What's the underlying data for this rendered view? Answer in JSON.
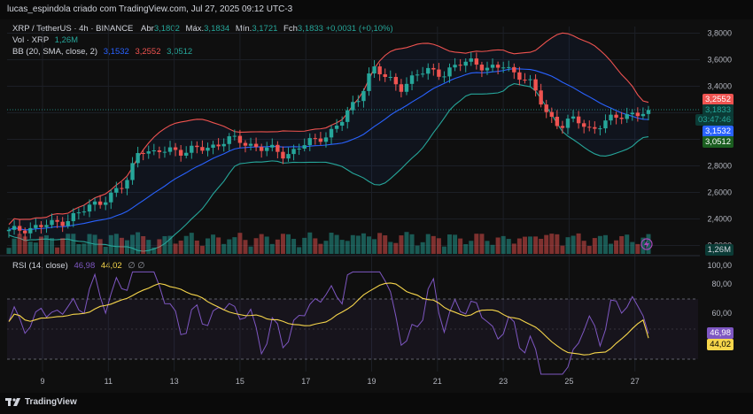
{
  "header": {
    "title": "lucas_espindola criado com TradingView.com, Jul 27, 2025 09:12 UTC-3"
  },
  "legend": {
    "symbol": "XRP / TetherUS · 4h · BINANCE",
    "open_label": "Abr",
    "open": "3,1802",
    "high_label": "Máx.",
    "high": "3,1834",
    "low_label": "Mín.",
    "low": "3,1721",
    "close_label": "Fch",
    "close": "3,1833",
    "change": "+0,0031 (+0,10%)",
    "vol_label": "Vol · XRP",
    "vol": "1,26M",
    "bb_label": "BB (20, SMA, close, 2)",
    "bb_mid": "3,1532",
    "bb_up": "3,2552",
    "bb_low": "3,0512",
    "rsi_label": "RSI (14, close)",
    "rsi": "46,98",
    "rsi_ma": "44,02",
    "rsi_extra": "∅ ∅"
  },
  "price_axis": {
    "ticks": [
      "3,8000",
      "3,6000",
      "3,4000",
      "3,2000",
      "3,0000",
      "2,8000",
      "2,6000",
      "2,4000",
      "2,2000"
    ]
  },
  "price_tags": {
    "upper": "3,2552",
    "last": "3,1833",
    "countdown": "03:47:46",
    "mid": "3,1532",
    "lower": "3,0512",
    "volume": "1,26M"
  },
  "rsi_axis": {
    "ticks": [
      "100,00",
      "80,00",
      "60,00"
    ]
  },
  "rsi_tags": {
    "rsi": "46,98",
    "ma": "44,02"
  },
  "time_axis": {
    "ticks": [
      "9",
      "11",
      "13",
      "15",
      "17",
      "19",
      "21",
      "23",
      "25",
      "27"
    ]
  },
  "footer": {
    "brand": "TradingView"
  },
  "colors": {
    "up": "#26a69a",
    "down": "#ef5350",
    "basis": "#2962ff",
    "rsi": "#7e57c2",
    "rsi_ma": "#f7d64b",
    "bg": "#0f0f0f"
  },
  "chart_data": {
    "type": "candlestick",
    "symbol": "XRP / TetherUS",
    "timeframe": "4h",
    "x": [
      "9",
      "11",
      "13",
      "15",
      "17",
      "19",
      "21",
      "23",
      "25",
      "27"
    ],
    "close_series": [
      2.3,
      2.33,
      2.34,
      2.36,
      2.4,
      2.45,
      2.52,
      2.58,
      2.65,
      2.95,
      2.88,
      2.93,
      2.91,
      2.92,
      2.95,
      3.0,
      2.98,
      2.95,
      2.92,
      2.88,
      2.95,
      2.98,
      3.05,
      3.15,
      3.3,
      3.55,
      3.45,
      3.4,
      3.48,
      3.52,
      3.5,
      3.56,
      3.6,
      3.52,
      3.55,
      3.5,
      3.4,
      3.2,
      3.1,
      3.15,
      3.08,
      3.12,
      3.18,
      3.2,
      3.18
    ],
    "ylim": [
      2.15,
      3.85
    ],
    "rsi": {
      "ylim": [
        0,
        100
      ],
      "levels": [
        70,
        30
      ],
      "last": 46.98,
      "ma_last": 44.02
    }
  }
}
